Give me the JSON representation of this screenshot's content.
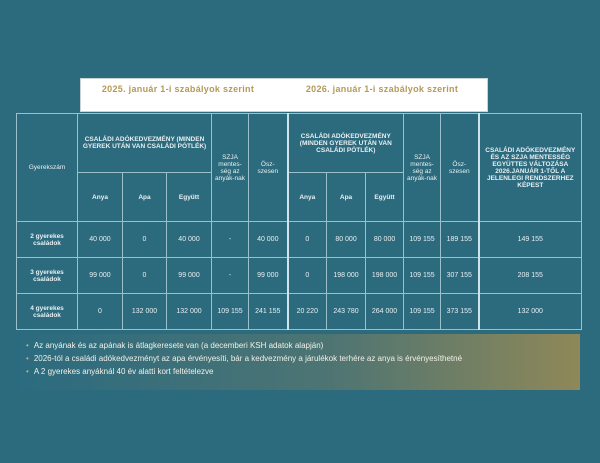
{
  "header_2025": "2025. január 1-i szabályok szerint",
  "header_2026": "2026. január 1-i szabályok szerint",
  "columns": {
    "children": "Gyerekszám",
    "csaladi_2025": "CSALÁDI ADÓKEDVEZMÉNY (MINDEN GYEREK UTÁN VAN CSALÁDI PÓTLÉK)",
    "szja_2025": "SZJA mentes-ség az anyák-nak",
    "total_2025": "Ösz-szesen",
    "csaladi_2026": "CSALÁDI ADÓKEDVEZMÉNY (MINDEN GYEREK UTÁN VAN CSALÁDI PÓTLÉK)",
    "szja_2026": "SZJA mentes-ség az anyák-nak",
    "total_2026": "Ösz-szesen",
    "change": "CSALÁDI ADÓKEDVEZMÉNY ÉS AZ SZJA MENTESSÉG EGYÜTTES VÁLTOZÁSA 2026.JANUÁR 1-TŐL A JELENLEGI RENDSZERHEZ KÉPEST",
    "anya": "Anya",
    "apa": "Apa",
    "egyutt": "Együtt"
  },
  "rows": [
    {
      "label": "2 gyerekes családok",
      "anya25": "40 000",
      "apa25": "0",
      "egyutt25": "40 000",
      "szja25": "-",
      "total25": "40 000",
      "anya26": "0",
      "apa26": "80 000",
      "egyutt26": "80 000",
      "szja26": "109 155",
      "total26": "189 155",
      "change": "149 155"
    },
    {
      "label": "3 gyerekes családok",
      "anya25": "99 000",
      "apa25": "0",
      "egyutt25": "99 000",
      "szja25": "-",
      "total25": "99 000",
      "anya26": "0",
      "apa26": "198 000",
      "egyutt26": "198 000",
      "szja26": "109 155",
      "total26": "307 155",
      "change": "208 155"
    },
    {
      "label": "4 gyerekes családok",
      "anya25": "0",
      "apa25": "132 000",
      "egyutt25": "132 000",
      "szja25": "109 155",
      "total25": "241 155",
      "anya26": "20 220",
      "apa26": "243 780",
      "egyutt26": "264 000",
      "szja26": "109 155",
      "total26": "373 155",
      "change": "132 000"
    }
  ],
  "notes": [
    "Az anyának és az apának is átlagkeresete van (a decemberi KSH adatok alapján)",
    "2026-tól a családi adókedvezményt az apa érvényesíti, bár a kedvezmény a járulékok terhére az anya is érvényesíthetné",
    "A 2 gyerekes anyáknál 40 év alatti kort feltételezve"
  ],
  "colors": {
    "background": "#2c6a7e",
    "header_text": "#b59a57",
    "bullet": "#c9b16c"
  }
}
